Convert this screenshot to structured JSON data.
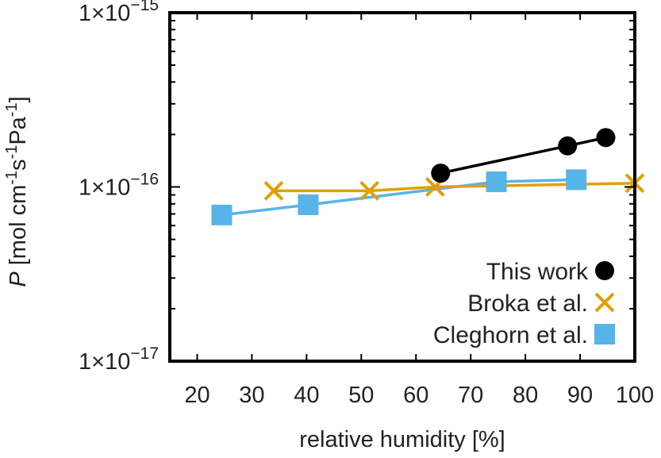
{
  "chart_data": {
    "type": "line",
    "title": "",
    "xlabel": "relative humidity [%]",
    "ylabel": {
      "symbol": "P",
      "parts": [
        {
          "text": " [mol cm",
          "sup": false
        },
        {
          "text": "-1",
          "sup": true
        },
        {
          "text": "s",
          "sup": false
        },
        {
          "text": "-1",
          "sup": true
        },
        {
          "text": "Pa",
          "sup": false
        },
        {
          "text": "-1",
          "sup": true
        },
        {
          "text": "]",
          "sup": false
        }
      ]
    },
    "xlim": [
      15,
      100
    ],
    "ylim": [
      1e-17,
      1e-15
    ],
    "yscale": "log",
    "grid": false,
    "legend_position": "bottom-right",
    "x_ticks": [
      20,
      30,
      40,
      50,
      60,
      70,
      80,
      90,
      100
    ],
    "y_ticks": [
      {
        "value": 1e-17,
        "mantissa": "1×10",
        "exponent": "−17"
      },
      {
        "value": 1e-16,
        "mantissa": "1×10",
        "exponent": "−16"
      },
      {
        "value": 1e-15,
        "mantissa": "1×10",
        "exponent": "−15"
      }
    ],
    "series": [
      {
        "name": "This work",
        "marker": "circle",
        "color": "#000000",
        "points": [
          [
            64.5,
            1.2e-16
          ],
          [
            87.7,
            1.72e-16
          ],
          [
            94.7,
            1.92e-16
          ]
        ]
      },
      {
        "name": "Broka et al.",
        "marker": "x",
        "color": "#e0a000",
        "points": [
          [
            34,
            9.5e-17
          ],
          [
            51.5,
            9.5e-17
          ],
          [
            63.5,
            1e-16
          ],
          [
            100,
            1.05e-16
          ]
        ]
      },
      {
        "name": "Cleghorn et al.",
        "marker": "square",
        "color": "#56b4e9",
        "points": [
          [
            24.5,
            6.9e-17
          ],
          [
            40.3,
            7.9e-17
          ],
          [
            74.7,
            1.07e-16
          ],
          [
            89.3,
            1.1e-16
          ]
        ]
      }
    ]
  }
}
